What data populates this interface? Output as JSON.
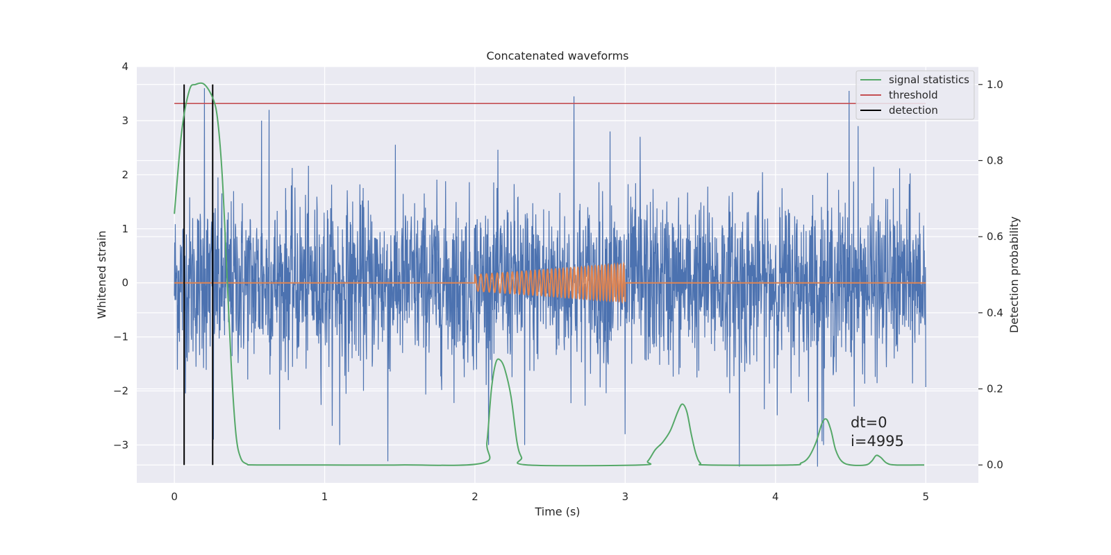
{
  "chart_data": {
    "type": "line",
    "title": "Concatenated waveforms",
    "xlabel": "Time (s)",
    "ylabel": "Whitened strain",
    "y2label": "Detection probability",
    "xlim": [
      -0.25,
      5.35
    ],
    "ylim": [
      -3.7,
      4.0
    ],
    "y2lim": [
      -0.047,
      1.047
    ],
    "xticks": [
      0,
      1,
      2,
      3,
      4,
      5
    ],
    "xtick_labels": [
      "0",
      "1",
      "2",
      "3",
      "4",
      "5"
    ],
    "yticks": [
      -3,
      -2,
      -1,
      0,
      1,
      2,
      3,
      4
    ],
    "ytick_labels": [
      "−3",
      "−2",
      "−1",
      "0",
      "1",
      "2",
      "3",
      "4"
    ],
    "y2ticks": [
      0.0,
      0.2,
      0.4,
      0.6,
      0.8,
      1.0
    ],
    "y2tick_labels": [
      "0.0",
      "0.2",
      "0.4",
      "0.6",
      "0.8",
      "1.0"
    ],
    "grid": true,
    "legend": {
      "placement": "top-right",
      "entries": [
        {
          "label": "signal statistics",
          "color": "#55a868"
        },
        {
          "label": "threshold",
          "color": "#c44e52"
        },
        {
          "label": "detection",
          "color": "#000000"
        }
      ]
    },
    "annotations": {
      "dt": "dt=0",
      "i": "i=4995"
    },
    "series": [
      {
        "id": "whitened-strain",
        "axis": "left",
        "color": "#4c72b0",
        "x_range": [
          0,
          5
        ],
        "noise_std": 0.78,
        "peaks": [
          {
            "x": 0.2,
            "y": 3.6
          },
          {
            "x": 0.63,
            "y": 3.2
          },
          {
            "x": 2.66,
            "y": 3.45
          },
          {
            "x": 4.49,
            "y": 3.55
          },
          {
            "x": 0.58,
            "y": 3.0
          },
          {
            "x": 2.9,
            "y": 2.8
          },
          {
            "x": 3.1,
            "y": 2.7
          },
          {
            "x": 4.55,
            "y": 2.9
          },
          {
            "x": 1.42,
            "y": -3.3
          },
          {
            "x": 3.76,
            "y": -3.4
          },
          {
            "x": 4.28,
            "y": -3.4
          },
          {
            "x": 1.1,
            "y": -3.0
          },
          {
            "x": 2.33,
            "y": -3.0
          },
          {
            "x": 4.32,
            "y": -3.0
          },
          {
            "x": 0.26,
            "y": -2.9
          },
          {
            "x": 3.0,
            "y": -2.8
          }
        ]
      },
      {
        "id": "injected-signal",
        "axis": "left",
        "color": "#dd8452",
        "x_range": [
          0,
          5
        ],
        "chirp": {
          "t_start": 2.0,
          "t_end": 3.0,
          "amp_start": 0.15,
          "amp_end": 0.35,
          "f_start": 25,
          "f_end": 50
        }
      },
      {
        "id": "signal-statistics",
        "name": "signal statistics",
        "axis": "right",
        "color": "#55a868",
        "x": [
          0.0,
          0.05,
          0.1,
          0.14,
          0.2,
          0.26,
          0.29,
          0.32,
          0.35,
          0.38,
          0.41,
          0.44,
          0.48,
          0.55,
          1.0,
          1.5,
          2.05,
          2.08,
          2.11,
          2.14,
          2.17,
          2.2,
          2.24,
          2.28,
          2.31,
          2.35,
          3.1,
          3.15,
          3.2,
          3.25,
          3.3,
          3.35,
          3.38,
          3.41,
          3.44,
          3.47,
          3.5,
          3.55,
          4.1,
          4.17,
          4.22,
          4.27,
          4.31,
          4.34,
          4.37,
          4.4,
          4.44,
          4.5,
          4.6,
          4.64,
          4.67,
          4.7,
          4.74,
          4.8,
          4.99
        ],
        "values": [
          0.66,
          0.88,
          0.985,
          1.0,
          1.0,
          0.96,
          0.9,
          0.75,
          0.5,
          0.25,
          0.08,
          0.02,
          0.003,
          0.0,
          0.0,
          0.0,
          0.005,
          0.06,
          0.2,
          0.27,
          0.275,
          0.25,
          0.18,
          0.06,
          0.02,
          0.0,
          0.0,
          0.01,
          0.04,
          0.06,
          0.09,
          0.14,
          0.16,
          0.14,
          0.08,
          0.03,
          0.005,
          0.0,
          0.0,
          0.005,
          0.02,
          0.06,
          0.11,
          0.12,
          0.09,
          0.04,
          0.01,
          0.0,
          0.0,
          0.01,
          0.025,
          0.02,
          0.005,
          0.0,
          0.0
        ]
      },
      {
        "id": "threshold",
        "name": "threshold",
        "axis": "right",
        "color": "#c44e52",
        "x": [
          0,
          5
        ],
        "values": [
          0.95,
          0.95
        ]
      }
    ],
    "detections": {
      "name": "detection",
      "color": "#000000",
      "x": [
        0.065,
        0.255
      ],
      "y2_range": [
        0.0,
        1.0
      ]
    }
  }
}
